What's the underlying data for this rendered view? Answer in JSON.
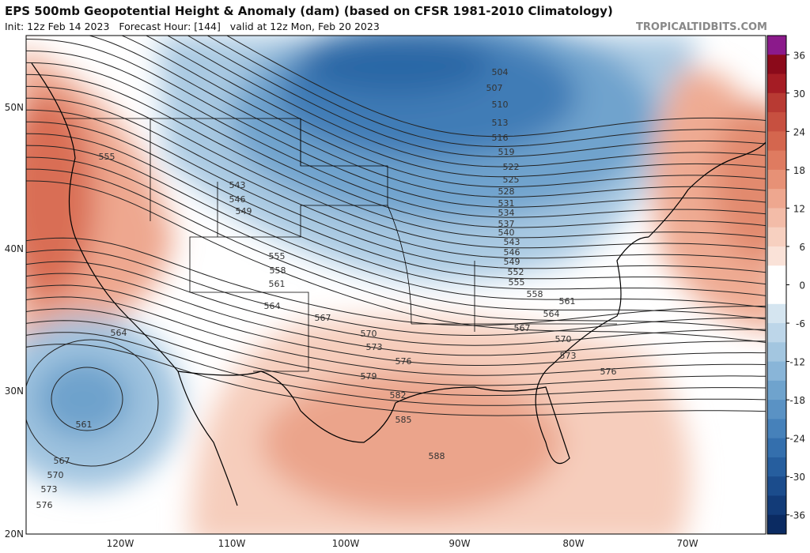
{
  "header": {
    "title": "EPS 500mb Geopotential Height & Anomaly (dam) (based on CFSR 1981-2010 Climatology)",
    "subtitle": "Init: 12z Feb 14 2023   Forecast Hour: [144]   valid at 12z Mon, Feb 20 2023",
    "watermark": "TROPICALTIDBITS.COM"
  },
  "map": {
    "lat_labels": [
      "50N",
      "40N",
      "30N",
      "20N"
    ],
    "lon_labels": [
      "120W",
      "110W",
      "100W",
      "90W",
      "80W",
      "70W"
    ],
    "contour_labels": [
      "504",
      "507",
      "510",
      "513",
      "516",
      "519",
      "522",
      "525",
      "528",
      "531",
      "534",
      "537",
      "540",
      "543",
      "546",
      "549",
      "552",
      "555",
      "558",
      "561",
      "564",
      "567",
      "570",
      "573",
      "576",
      "555",
      "543",
      "546",
      "549",
      "555",
      "558",
      "561",
      "564",
      "567",
      "570",
      "573",
      "576",
      "579",
      "582",
      "585",
      "588",
      "564",
      "561",
      "567",
      "570",
      "573",
      "576"
    ]
  },
  "colorbar": {
    "range": [
      -39,
      39
    ],
    "ticks": [
      36,
      30,
      24,
      18,
      12,
      6,
      0,
      -6,
      -12,
      -18,
      -24,
      -30,
      -36
    ]
  }
}
